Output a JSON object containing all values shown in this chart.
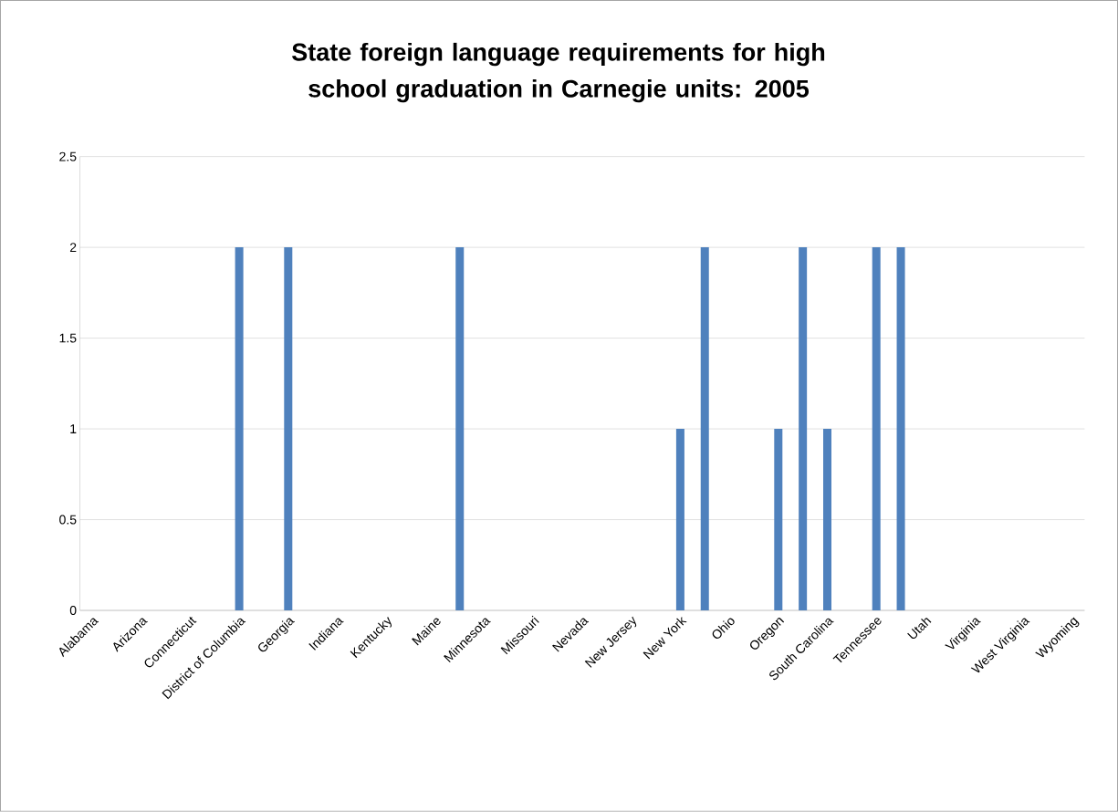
{
  "chart_data": {
    "type": "bar",
    "title": "State foreign language requirements for high school graduation in Carnegie units: 2005",
    "categories": [
      "Alabama",
      null,
      "Arizona",
      null,
      "Connecticut",
      null,
      "District of Columbia",
      null,
      "Georgia",
      null,
      "Indiana",
      null,
      "Kentucky",
      null,
      "Maine",
      null,
      "Minnesota",
      null,
      "Missouri",
      null,
      "Nevada",
      null,
      "New Jersey",
      null,
      "New York",
      null,
      "Ohio",
      null,
      "Oregon",
      null,
      "South Carolina",
      null,
      "Tennessee",
      null,
      "Utah",
      null,
      "Virginia",
      null,
      "West Virginia",
      null,
      "Wyoming"
    ],
    "values": [
      0,
      0,
      0,
      0,
      0,
      0,
      2,
      0,
      2,
      0,
      0,
      0,
      0,
      0,
      0,
      2,
      0,
      0,
      0,
      0,
      0,
      0,
      0,
      0,
      1,
      2,
      0,
      0,
      1,
      2,
      1,
      0,
      2,
      2,
      0,
      0,
      0,
      0,
      0,
      0,
      0
    ],
    "color": "#4f81bd",
    "ylim": [
      0,
      2.5
    ],
    "yticks": [
      0,
      0.5,
      1,
      1.5,
      2,
      2.5
    ],
    "grid": "y"
  }
}
